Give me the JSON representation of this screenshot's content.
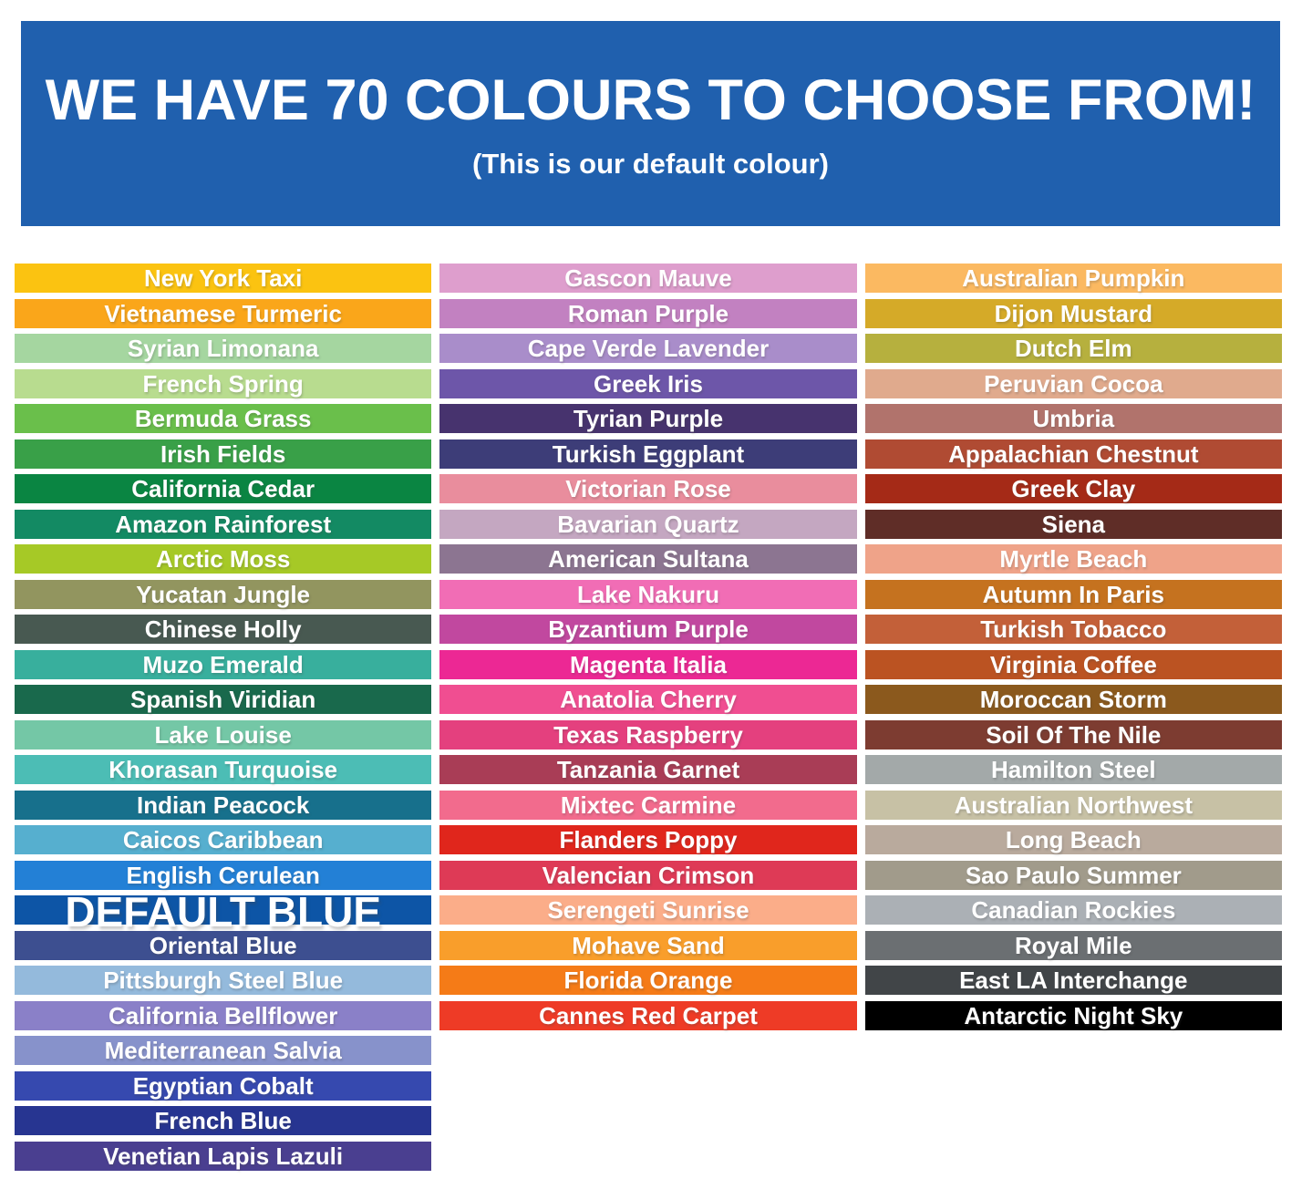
{
  "header": {
    "title": "WE HAVE 70 COLOURS TO CHOOSE FROM!",
    "subtitle": "(This is our default colour)",
    "background": "#2060AE",
    "text_color": "#FFFFFF"
  },
  "columns": [
    {
      "swatches": [
        {
          "label": "New York Taxi",
          "color": "#FBC311"
        },
        {
          "label": "Vietnamese Turmeric",
          "color": "#FAA61A"
        },
        {
          "label": "Syrian Limonana",
          "color": "#A5D6A0"
        },
        {
          "label": "French Spring",
          "color": "#B8DC8F"
        },
        {
          "label": "Bermuda Grass",
          "color": "#6ABF4B"
        },
        {
          "label": "Irish Fields",
          "color": "#39A048"
        },
        {
          "label": "California Cedar",
          "color": "#0A8542"
        },
        {
          "label": "Amazon Rainforest",
          "color": "#138A63"
        },
        {
          "label": "Arctic Moss",
          "color": "#A6C926"
        },
        {
          "label": "Yucatan Jungle",
          "color": "#92955F"
        },
        {
          "label": "Chinese Holly",
          "color": "#485951"
        },
        {
          "label": "Muzo Emerald",
          "color": "#38AF9D"
        },
        {
          "label": "Spanish Viridian",
          "color": "#19694C"
        },
        {
          "label": "Lake Louise",
          "color": "#74C7A6"
        },
        {
          "label": "Khorasan Turquoise",
          "color": "#4CBDB5"
        },
        {
          "label": "Indian Peacock",
          "color": "#17708C"
        },
        {
          "label": "Caicos Caribbean",
          "color": "#56AFCF"
        },
        {
          "label": "English Cerulean",
          "color": "#2380D6"
        },
        {
          "label": "DEFAULT BLUE",
          "color": "#0D55A6",
          "emphasis": true
        },
        {
          "label": "Oriental Blue",
          "color": "#3D4F90"
        },
        {
          "label": "Pittsburgh Steel Blue",
          "color": "#94BADC"
        },
        {
          "label": "California Bellflower",
          "color": "#8A80C8"
        },
        {
          "label": "Mediterranean Salvia",
          "color": "#8792CB"
        },
        {
          "label": "Egyptian Cobalt",
          "color": "#3649AF"
        },
        {
          "label": "French Blue",
          "color": "#273591"
        },
        {
          "label": "Venetian Lapis Lazuli",
          "color": "#4A3F90"
        }
      ]
    },
    {
      "swatches": [
        {
          "label": "Gascon Mauve",
          "color": "#DE9ECD"
        },
        {
          "label": "Roman Purple",
          "color": "#C281C1"
        },
        {
          "label": "Cape Verde Lavender",
          "color": "#A98DCA"
        },
        {
          "label": "Greek Iris",
          "color": "#6D56A9"
        },
        {
          "label": "Tyrian Purple",
          "color": "#47336E"
        },
        {
          "label": "Turkish Eggplant",
          "color": "#3D3D78"
        },
        {
          "label": "Victorian Rose",
          "color": "#E98D9D"
        },
        {
          "label": "Bavarian Quartz",
          "color": "#C4A7C1"
        },
        {
          "label": "American Sultana",
          "color": "#8C7591"
        },
        {
          "label": "Lake Nakuru",
          "color": "#F16DB5"
        },
        {
          "label": "Byzantium Purple",
          "color": "#C1489F"
        },
        {
          "label": "Magenta Italia",
          "color": "#EC2894"
        },
        {
          "label": "Anatolia Cherry",
          "color": "#F04E91"
        },
        {
          "label": "Texas Raspberry",
          "color": "#E4407E"
        },
        {
          "label": "Tanzania Garnet",
          "color": "#A93D56"
        },
        {
          "label": "Mixtec Carmine",
          "color": "#F26B8D"
        },
        {
          "label": "Flanders Poppy",
          "color": "#E0261C"
        },
        {
          "label": "Valencian Crimson",
          "color": "#DE3A56"
        },
        {
          "label": "Serengeti Sunrise",
          "color": "#FBAD89"
        },
        {
          "label": "Mohave Sand",
          "color": "#F99E2B"
        },
        {
          "label": "Florida Orange",
          "color": "#F57B17"
        },
        {
          "label": "Cannes Red Carpet",
          "color": "#EE3B26"
        }
      ]
    },
    {
      "swatches": [
        {
          "label": "Australian Pumpkin",
          "color": "#FBB961"
        },
        {
          "label": "Dijon Mustard",
          "color": "#D5AA28"
        },
        {
          "label": "Dutch Elm",
          "color": "#B6B03E"
        },
        {
          "label": "Peruvian Cocoa",
          "color": "#E0AA8D"
        },
        {
          "label": "Umbria",
          "color": "#B1736C"
        },
        {
          "label": "Appalachian Chestnut",
          "color": "#B04B33"
        },
        {
          "label": "Greek Clay",
          "color": "#A52A17"
        },
        {
          "label": "Siena",
          "color": "#5F2D27"
        },
        {
          "label": "Myrtle Beach",
          "color": "#EFA389"
        },
        {
          "label": "Autumn In Paris",
          "color": "#C5721F"
        },
        {
          "label": "Turkish Tobacco",
          "color": "#C36039"
        },
        {
          "label": "Virginia Coffee",
          "color": "#BB5322"
        },
        {
          "label": "Moroccan Storm",
          "color": "#8B591D"
        },
        {
          "label": "Soil Of The Nile",
          "color": "#7D3C31"
        },
        {
          "label": "Hamilton Steel",
          "color": "#A3A9A9"
        },
        {
          "label": "Australian Northwest",
          "color": "#C7C1A5"
        },
        {
          "label": "Long Beach",
          "color": "#B9AA9D"
        },
        {
          "label": "Sao Paulo Summer",
          "color": "#A19B8B"
        },
        {
          "label": "Canadian Rockies",
          "color": "#ABB0B5"
        },
        {
          "label": "Royal Mile",
          "color": "#6B6F72"
        },
        {
          "label": "East LA Interchange",
          "color": "#414548"
        },
        {
          "label": "Antarctic Night Sky",
          "color": "#000000"
        }
      ]
    }
  ]
}
